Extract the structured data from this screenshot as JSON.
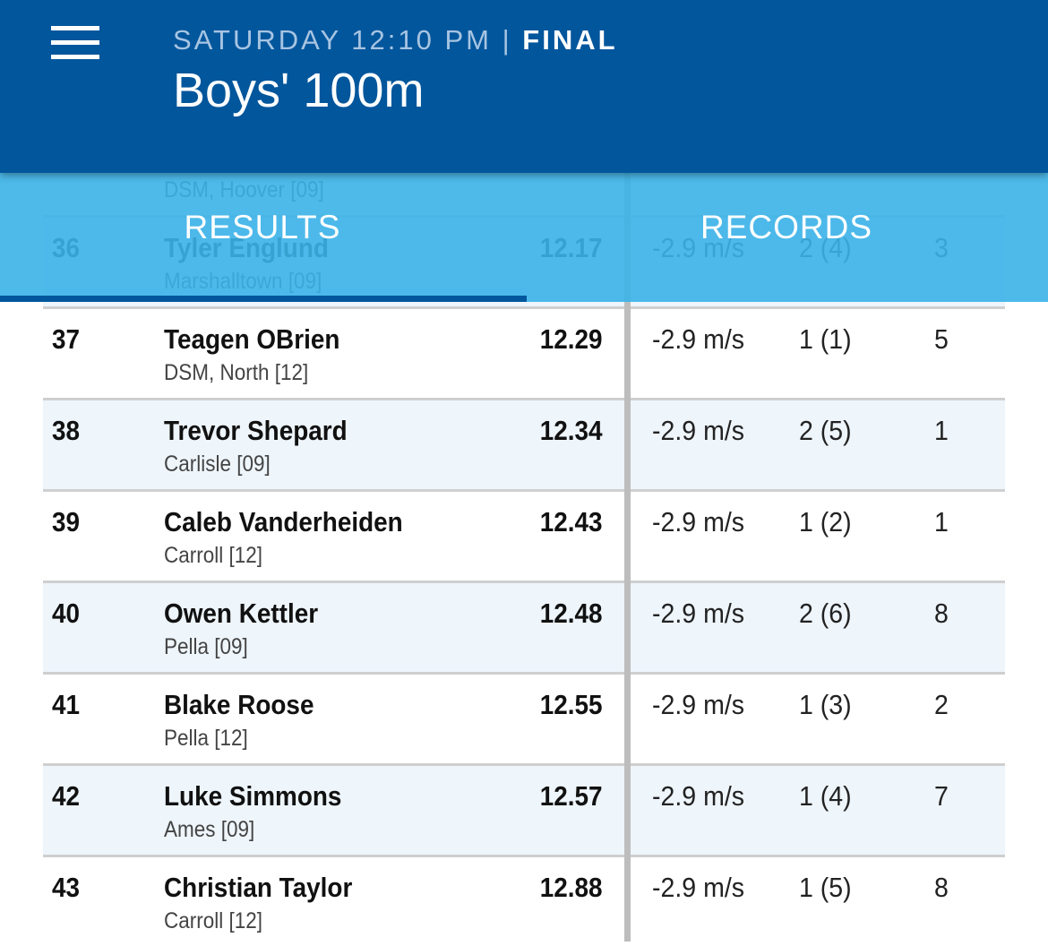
{
  "header": {
    "time": "SATURDAY 12:10 PM",
    "separator": "|",
    "status": "FINAL",
    "title": "Boys' 100m"
  },
  "tabs": [
    "RESULTS",
    "RECORDS"
  ],
  "rows": [
    {
      "school": "DSM, Hoover [09]"
    },
    {
      "place": "36",
      "name": "Tyler Englund",
      "school": "Marshalltown [09]",
      "time": "12.17",
      "wind": "-2.9 m/s",
      "heat": "2 (4)",
      "lane": "3"
    },
    {
      "place": "37",
      "name": "Teagen OBrien",
      "school": "DSM, North [12]",
      "time": "12.29",
      "wind": "-2.9 m/s",
      "heat": "1 (1)",
      "lane": "5"
    },
    {
      "place": "38",
      "name": "Trevor Shepard",
      "school": "Carlisle [09]",
      "time": "12.34",
      "wind": "-2.9 m/s",
      "heat": "2 (5)",
      "lane": "1"
    },
    {
      "place": "39",
      "name": "Caleb Vanderheiden",
      "school": "Carroll [12]",
      "time": "12.43",
      "wind": "-2.9 m/s",
      "heat": "1 (2)",
      "lane": "1"
    },
    {
      "place": "40",
      "name": "Owen Kettler",
      "school": "Pella [09]",
      "time": "12.48",
      "wind": "-2.9 m/s",
      "heat": "2 (6)",
      "lane": "8"
    },
    {
      "place": "41",
      "name": "Blake Roose",
      "school": "Pella [12]",
      "time": "12.55",
      "wind": "-2.9 m/s",
      "heat": "1 (3)",
      "lane": "2"
    },
    {
      "place": "42",
      "name": "Luke Simmons",
      "school": "Ames [09]",
      "time": "12.57",
      "wind": "-2.9 m/s",
      "heat": "1 (4)",
      "lane": "7"
    },
    {
      "place": "43",
      "name": "Christian Taylor",
      "school": "Carroll [12]",
      "time": "12.88",
      "wind": "-2.9 m/s",
      "heat": "1 (5)",
      "lane": "8"
    }
  ]
}
